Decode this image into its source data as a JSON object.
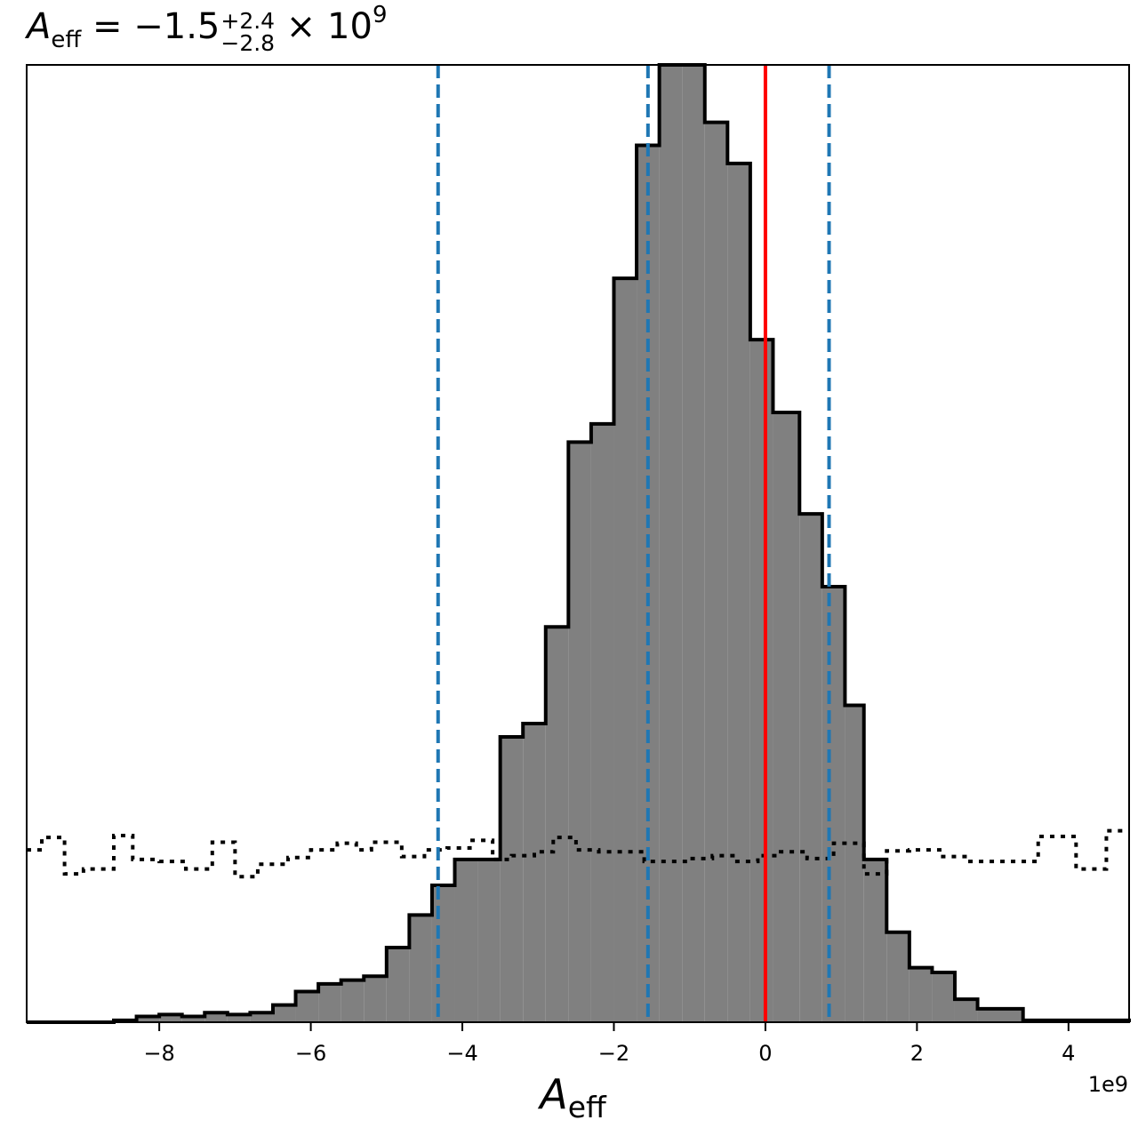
{
  "title": {
    "symbol": "A",
    "symbol_sub": "eff",
    "equals": " = −1.5",
    "upper_err": "+2.4",
    "lower_err": "−2.8",
    "times": " × 10",
    "exponent": "9"
  },
  "axes": {
    "xlabel_symbol": "A",
    "xlabel_sub": "eff",
    "offset_text": "1e9"
  },
  "colors": {
    "hist_fill": "#808080",
    "hist_edge": "#000000",
    "quantile_lines": "#1f77b4",
    "truth_line": "#ff0000",
    "prior_line": "#000000"
  },
  "chart_data": {
    "type": "histogram",
    "x_unit_multiplier": 1000000000,
    "xlim": [
      -9.75,
      4.8
    ],
    "ylim": [
      0,
      1.0
    ],
    "xticks": [
      -8,
      -6,
      -4,
      -2,
      0,
      2,
      4
    ],
    "xtick_labels": [
      "−8",
      "−6",
      "−4",
      "−2",
      "0",
      "2",
      "4"
    ],
    "yticks_visible": false,
    "grid": false,
    "legend": "none",
    "posterior": {
      "bin_edges": [
        -9.75,
        -8.6,
        -8.3,
        -8.0,
        -7.7,
        -7.4,
        -7.1,
        -6.8,
        -6.5,
        -6.2,
        -5.9,
        -5.6,
        -5.3,
        -5.0,
        -4.7,
        -4.4,
        -4.1,
        -3.8,
        -3.5,
        -3.2,
        -2.9,
        -2.6,
        -2.3,
        -2.0,
        -1.7,
        -1.4,
        -1.1,
        -0.8,
        -0.5,
        -0.2,
        0.1,
        0.45,
        0.75,
        1.05,
        1.3,
        1.6,
        1.9,
        2.2,
        2.5,
        2.8,
        3.4,
        4.8
      ],
      "values": [
        0.0,
        0.002,
        0.006,
        0.008,
        0.006,
        0.01,
        0.008,
        0.01,
        0.018,
        0.032,
        0.04,
        0.044,
        0.048,
        0.078,
        0.112,
        0.143,
        0.17,
        0.17,
        0.298,
        0.312,
        0.413,
        0.606,
        0.625,
        0.777,
        0.916,
        1.0,
        1.0,
        0.94,
        0.897,
        0.713,
        0.637,
        0.531,
        0.455,
        0.331,
        0.17,
        0.094,
        0.057,
        0.052,
        0.024,
        0.014,
        0.002
      ]
    },
    "prior": {
      "style": "dotted",
      "bin_edges": [
        -9.75,
        -9.55,
        -9.25,
        -9.0,
        -8.8,
        -8.6,
        -8.35,
        -8.0,
        -7.65,
        -7.3,
        -7.0,
        -6.7,
        -6.3,
        -6.0,
        -5.65,
        -5.4,
        -5.2,
        -4.8,
        -4.5,
        -4.2,
        -3.9,
        -3.6,
        -3.35,
        -3.05,
        -2.8,
        -2.5,
        -2.2,
        -1.9,
        -1.6,
        -1.3,
        -1.0,
        -0.7,
        -0.4,
        -0.1,
        0.2,
        0.55,
        0.9,
        1.3,
        1.6,
        1.9,
        2.3,
        2.7,
        3.0,
        3.6,
        4.1,
        4.5,
        4.8
      ],
      "values": [
        0.18,
        0.193,
        0.155,
        0.16,
        0.16,
        0.195,
        0.17,
        0.168,
        0.16,
        0.188,
        0.152,
        0.165,
        0.172,
        0.18,
        0.187,
        0.18,
        0.188,
        0.173,
        0.18,
        0.182,
        0.19,
        0.17,
        0.174,
        0.178,
        0.193,
        0.18,
        0.178,
        0.178,
        0.168,
        0.168,
        0.171,
        0.174,
        0.168,
        0.174,
        0.178,
        0.171,
        0.187,
        0.155,
        0.179,
        0.18,
        0.173,
        0.168,
        0.168,
        0.194,
        0.16,
        0.2
      ]
    },
    "vertical_lines": [
      {
        "x": -4.32,
        "style": "dashed",
        "role": "lower_quantile"
      },
      {
        "x": -1.55,
        "style": "dashed",
        "role": "median"
      },
      {
        "x": 0.84,
        "style": "dashed",
        "role": "upper_quantile"
      },
      {
        "x": 0.0,
        "style": "solid",
        "role": "truth"
      }
    ]
  }
}
